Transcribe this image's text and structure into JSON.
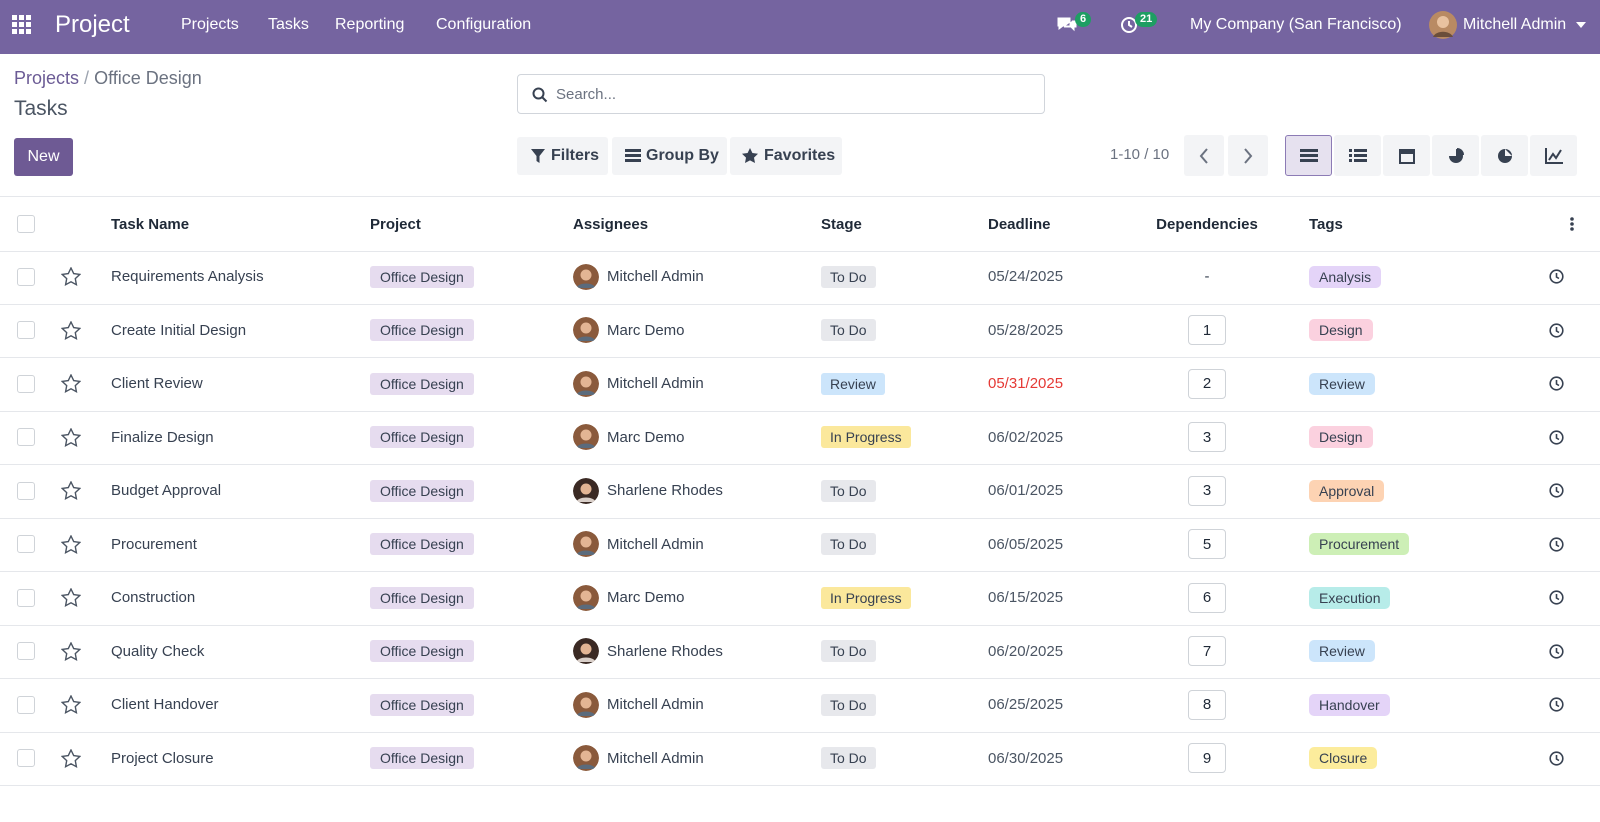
{
  "navbar": {
    "app": "Project",
    "menu": [
      "Projects",
      "Tasks",
      "Reporting",
      "Configuration"
    ],
    "messages_count": 6,
    "activities_count": 21,
    "company": "My Company (San Francisco)",
    "user": "Mitchell Admin"
  },
  "breadcrumb": [
    "Projects",
    "Office Design"
  ],
  "title": "Tasks",
  "new_button": "New",
  "search_placeholder": "Search...",
  "filters": [
    "Filters",
    "Group By",
    "Favorites"
  ],
  "pager": "1-10 / 10",
  "table": {
    "columns": [
      "Task Name",
      "Project",
      "Assignees",
      "Stage",
      "Deadline",
      "Dependencies",
      "Tags"
    ],
    "rows": [
      {
        "name": "Requirements Analysis",
        "project": "Office Design",
        "assignee": "Mitchell Admin",
        "stage": "To Do",
        "stage_color": "#e7e8ec",
        "deadline": "05/24/2025",
        "deadline_color": "#4b5563",
        "dependencies": "-",
        "tag": "Analysis",
        "tag_color": "#e4d4f8"
      },
      {
        "name": "Create Initial Design",
        "project": "Office Design",
        "assignee": "Marc Demo",
        "stage": "To Do",
        "stage_color": "#e7e8ec",
        "deadline": "05/28/2025",
        "deadline_color": "#4b5563",
        "dependencies": 1,
        "tag": "Design",
        "tag_color": "#fbd1df"
      },
      {
        "name": "Client Review",
        "project": "Office Design",
        "assignee": "Mitchell Admin",
        "stage": "Review",
        "stage_color": "#cce5fb",
        "deadline": "05/31/2025",
        "deadline_color": "#e53935",
        "dependencies": 2,
        "tag": "Review",
        "tag_color": "#cce5fb"
      },
      {
        "name": "Finalize Design",
        "project": "Office Design",
        "assignee": "Marc Demo",
        "stage": "In Progress",
        "stage_color": "#fbe89c",
        "deadline": "06/02/2025",
        "deadline_color": "#4b5563",
        "dependencies": 3,
        "tag": "Design",
        "tag_color": "#fbd1df"
      },
      {
        "name": "Budget Approval",
        "project": "Office Design",
        "assignee": "Sharlene Rhodes",
        "stage": "To Do",
        "stage_color": "#e7e8ec",
        "deadline": "06/01/2025",
        "deadline_color": "#4b5563",
        "dependencies": 3,
        "tag": "Approval",
        "tag_color": "#fdd3b3"
      },
      {
        "name": "Procurement",
        "project": "Office Design",
        "assignee": "Mitchell Admin",
        "stage": "To Do",
        "stage_color": "#e7e8ec",
        "deadline": "06/05/2025",
        "deadline_color": "#4b5563",
        "dependencies": 5,
        "tag": "Procurement",
        "tag_color": "#cdefb6"
      },
      {
        "name": "Construction",
        "project": "Office Design",
        "assignee": "Marc Demo",
        "stage": "In Progress",
        "stage_color": "#fbe89c",
        "deadline": "06/15/2025",
        "deadline_color": "#4b5563",
        "dependencies": 6,
        "tag": "Execution",
        "tag_color": "#b7ece9"
      },
      {
        "name": "Quality Check",
        "project": "Office Design",
        "assignee": "Sharlene Rhodes",
        "stage": "To Do",
        "stage_color": "#e7e8ec",
        "deadline": "06/20/2025",
        "deadline_color": "#4b5563",
        "dependencies": 7,
        "tag": "Review",
        "tag_color": "#cce5fb"
      },
      {
        "name": "Client Handover",
        "project": "Office Design",
        "assignee": "Mitchell Admin",
        "stage": "To Do",
        "stage_color": "#e7e8ec",
        "deadline": "06/25/2025",
        "deadline_color": "#4b5563",
        "dependencies": 8,
        "tag": "Handover",
        "tag_color": "#e4d4f8"
      },
      {
        "name": "Project Closure",
        "project": "Office Design",
        "assignee": "Mitchell Admin",
        "stage": "To Do",
        "stage_color": "#e7e8ec",
        "deadline": "06/30/2025",
        "deadline_color": "#4b5563",
        "dependencies": 9,
        "tag": "Closure",
        "tag_color": "#fcec9c"
      }
    ]
  }
}
